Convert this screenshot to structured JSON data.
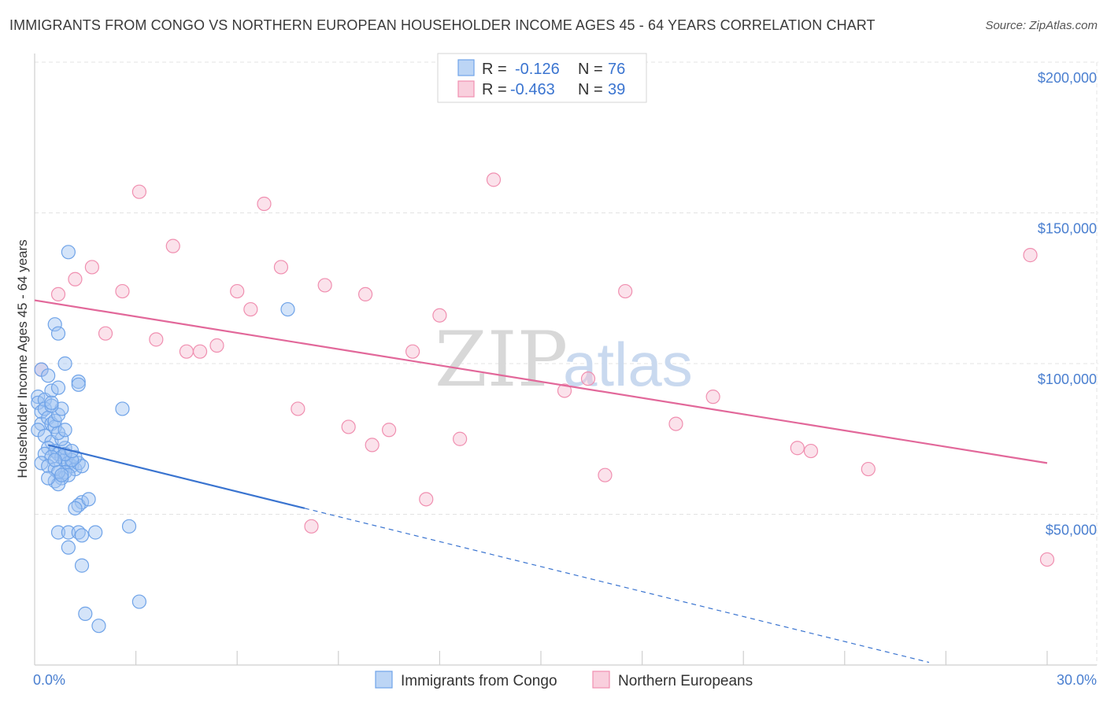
{
  "title": "IMMIGRANTS FROM CONGO VS NORTHERN EUROPEAN HOUSEHOLDER INCOME AGES 45 - 64 YEARS CORRELATION CHART",
  "source": "Source: ZipAtlas.com",
  "watermark": {
    "zip": "ZIP",
    "atlas": "atlas"
  },
  "legend": {
    "rows": [
      {
        "r_label": "R =",
        "r_value": "-0.126",
        "n_label": "N =",
        "n_value": "76",
        "color": "#6fa3e8"
      },
      {
        "r_label": "R =",
        "r_value": "-0.463",
        "n_label": "N =",
        "n_value": "39",
        "color": "#f08fb0"
      }
    ]
  },
  "bottom_legend": [
    "Immigrants from Congo",
    "Northern Europeans"
  ],
  "chart_data": {
    "type": "scatter",
    "title": "IMMIGRANTS FROM CONGO VS NORTHERN EUROPEAN HOUSEHOLDER INCOME AGES 45 - 64 YEARS CORRELATION CHART",
    "ylabel": "Householder Income Ages 45 - 64 years",
    "xlabel": "",
    "xlim": [
      0,
      30
    ],
    "ylim": [
      0,
      200000
    ],
    "x_tick_labels": [
      "0.0%",
      "30.0%"
    ],
    "y_tick_labels": [
      "$50,000",
      "$100,000",
      "$150,000",
      "$200,000"
    ],
    "y_ticks": [
      50000,
      100000,
      150000,
      200000
    ],
    "grid": true,
    "legend_position": "top-center",
    "colors": {
      "congo": "#6fa3e8",
      "congo_line": "#3a74d0",
      "northern": "#f08fb0",
      "northern_line": "#e2689a"
    },
    "series": [
      {
        "name": "Immigrants from Congo",
        "key": "congo",
        "r": -0.126,
        "n": 76,
        "trend": {
          "x0": 0.4,
          "y0": 73000,
          "x1": 8.0,
          "y1": 52000,
          "dash_to_x": 26.5
        },
        "points": [
          [
            0.1,
            89000
          ],
          [
            0.1,
            87000
          ],
          [
            0.2,
            84000
          ],
          [
            0.2,
            80000
          ],
          [
            0.1,
            78000
          ],
          [
            0.3,
            88000
          ],
          [
            0.2,
            98000
          ],
          [
            0.4,
            96000
          ],
          [
            0.5,
            91000
          ],
          [
            0.6,
            113000
          ],
          [
            0.7,
            110000
          ],
          [
            0.9,
            100000
          ],
          [
            1.0,
            137000
          ],
          [
            0.3,
            85000
          ],
          [
            0.4,
            82000
          ],
          [
            0.5,
            80000
          ],
          [
            0.6,
            79000
          ],
          [
            0.3,
            76000
          ],
          [
            0.5,
            74000
          ],
          [
            0.4,
            72000
          ],
          [
            0.6,
            71000
          ],
          [
            0.7,
            70000
          ],
          [
            0.8,
            69000
          ],
          [
            0.9,
            68000
          ],
          [
            1.0,
            67000
          ],
          [
            1.1,
            66000
          ],
          [
            1.2,
            65000
          ],
          [
            0.9,
            64000
          ],
          [
            1.0,
            63000
          ],
          [
            0.8,
            62000
          ],
          [
            0.6,
            61000
          ],
          [
            0.7,
            60000
          ],
          [
            0.3,
            70000
          ],
          [
            0.5,
            69000
          ],
          [
            0.2,
            67000
          ],
          [
            0.4,
            66000
          ],
          [
            0.6,
            65000
          ],
          [
            0.7,
            64000
          ],
          [
            0.8,
            63000
          ],
          [
            1.3,
            67000
          ],
          [
            1.4,
            66000
          ],
          [
            1.2,
            69000
          ],
          [
            1.1,
            68000
          ],
          [
            0.9,
            72000
          ],
          [
            0.8,
            75000
          ],
          [
            0.7,
            77000
          ],
          [
            0.6,
            81000
          ],
          [
            0.9,
            78000
          ],
          [
            0.7,
            83000
          ],
          [
            0.8,
            85000
          ],
          [
            0.5,
            86000
          ],
          [
            1.3,
            94000
          ],
          [
            1.3,
            93000
          ],
          [
            0.7,
            92000
          ],
          [
            2.6,
            85000
          ],
          [
            7.5,
            118000
          ],
          [
            1.4,
            54000
          ],
          [
            1.3,
            53000
          ],
          [
            1.6,
            55000
          ],
          [
            1.2,
            52000
          ],
          [
            0.7,
            44000
          ],
          [
            1.0,
            44000
          ],
          [
            1.3,
            44000
          ],
          [
            1.4,
            43000
          ],
          [
            1.8,
            44000
          ],
          [
            2.8,
            46000
          ],
          [
            1.0,
            39000
          ],
          [
            1.4,
            33000
          ],
          [
            1.5,
            17000
          ],
          [
            1.9,
            13000
          ],
          [
            3.1,
            21000
          ],
          [
            0.5,
            87000
          ],
          [
            0.9,
            70000
          ],
          [
            1.1,
            71000
          ],
          [
            0.6,
            68000
          ],
          [
            0.4,
            62000
          ]
        ]
      },
      {
        "name": "Northern Europeans",
        "key": "northern",
        "r": -0.463,
        "n": 39,
        "trend": {
          "x0": 0.0,
          "y0": 121000,
          "x1": 30.0,
          "y1": 67000
        },
        "points": [
          [
            0.2,
            98000
          ],
          [
            0.7,
            123000
          ],
          [
            1.2,
            128000
          ],
          [
            1.7,
            132000
          ],
          [
            2.1,
            110000
          ],
          [
            2.6,
            124000
          ],
          [
            3.1,
            157000
          ],
          [
            3.6,
            108000
          ],
          [
            4.1,
            139000
          ],
          [
            4.5,
            104000
          ],
          [
            4.9,
            104000
          ],
          [
            5.4,
            106000
          ],
          [
            6.0,
            124000
          ],
          [
            6.4,
            118000
          ],
          [
            6.8,
            153000
          ],
          [
            7.3,
            132000
          ],
          [
            7.8,
            85000
          ],
          [
            8.2,
            46000
          ],
          [
            8.6,
            126000
          ],
          [
            9.3,
            79000
          ],
          [
            9.8,
            123000
          ],
          [
            10.0,
            73000
          ],
          [
            10.5,
            78000
          ],
          [
            11.2,
            104000
          ],
          [
            11.6,
            55000
          ],
          [
            12.0,
            116000
          ],
          [
            12.6,
            75000
          ],
          [
            13.6,
            161000
          ],
          [
            15.7,
            91000
          ],
          [
            16.4,
            95000
          ],
          [
            16.9,
            63000
          ],
          [
            17.5,
            124000
          ],
          [
            19.0,
            80000
          ],
          [
            20.1,
            89000
          ],
          [
            22.6,
            72000
          ],
          [
            23.0,
            71000
          ],
          [
            24.7,
            65000
          ],
          [
            29.5,
            136000
          ],
          [
            30.0,
            35000
          ]
        ]
      }
    ]
  }
}
